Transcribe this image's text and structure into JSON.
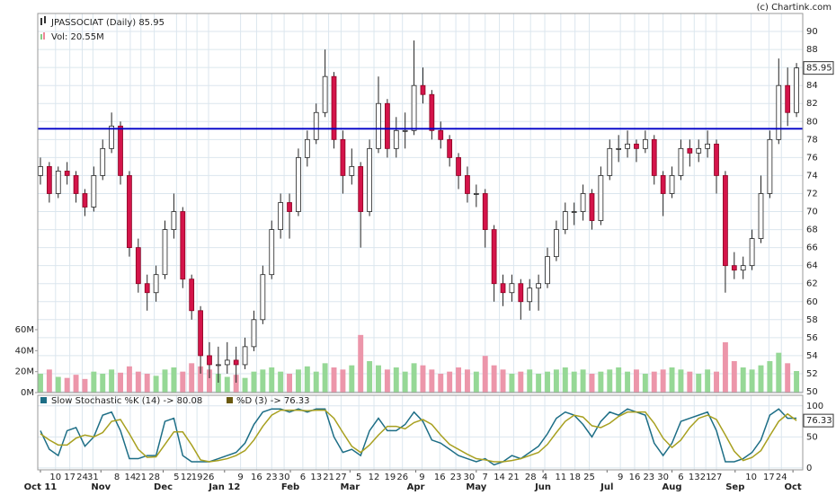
{
  "chart_data": {
    "type": "candlestick",
    "title": "JPASSOCIAT (Daily) 85.95",
    "volume_label": "Vol: 20.55M",
    "credit": "(c) Chartink.com",
    "up_color": "#ffffff",
    "down_color": "#d4144a",
    "vol_up_color": "#96d896",
    "vol_down_color": "#ec96aa",
    "candles": [
      [
        74,
        76,
        73,
        75
      ],
      [
        75,
        75.5,
        71,
        72
      ],
      [
        72,
        75,
        71.5,
        74.5
      ],
      [
        74.5,
        75.5,
        73,
        74
      ],
      [
        74,
        74.5,
        71,
        72
      ],
      [
        72,
        72.5,
        69.5,
        70.5
      ],
      [
        70.5,
        75,
        70,
        74
      ],
      [
        74,
        78,
        73.5,
        77
      ],
      [
        77,
        81,
        76.5,
        79.5
      ],
      [
        79.5,
        80,
        73,
        74
      ],
      [
        74,
        74.5,
        65,
        66
      ],
      [
        66,
        67,
        61,
        62
      ],
      [
        62,
        63,
        59,
        61
      ],
      [
        61,
        64,
        60,
        63
      ],
      [
        63,
        69,
        62.5,
        68
      ],
      [
        68,
        72,
        67,
        70
      ],
      [
        70,
        70.5,
        61.5,
        62.5
      ],
      [
        62.5,
        63,
        58,
        59
      ],
      [
        59,
        59.5,
        52,
        54
      ],
      [
        54,
        55.5,
        51.5,
        53
      ],
      [
        53,
        55,
        51,
        53
      ],
      [
        53,
        55.5,
        52,
        53.5
      ],
      [
        53.5,
        55,
        51,
        53
      ],
      [
        53,
        56,
        52.5,
        55
      ],
      [
        55,
        59,
        54.5,
        58
      ],
      [
        58,
        64,
        57.5,
        63
      ],
      [
        63,
        69,
        62.5,
        68
      ],
      [
        68,
        72,
        67,
        71
      ],
      [
        71,
        72,
        67,
        70
      ],
      [
        70,
        77,
        69.5,
        76
      ],
      [
        76,
        79,
        75,
        78
      ],
      [
        78,
        82,
        77.5,
        81
      ],
      [
        81,
        88,
        80.5,
        85
      ],
      [
        85,
        85.5,
        77,
        78
      ],
      [
        78,
        79,
        72,
        74
      ],
      [
        74,
        77,
        73,
        75
      ],
      [
        75,
        75.5,
        66,
        70
      ],
      [
        70,
        78,
        69.5,
        77
      ],
      [
        77,
        85,
        76.5,
        82
      ],
      [
        82,
        82.5,
        76,
        77
      ],
      [
        77,
        80.5,
        76,
        79
      ],
      [
        79,
        81,
        77,
        79
      ],
      [
        79,
        89,
        78.5,
        84
      ],
      [
        84,
        86,
        82,
        83
      ],
      [
        83,
        83.5,
        78,
        79
      ],
      [
        79,
        80,
        77,
        78
      ],
      [
        78,
        78.5,
        75,
        76
      ],
      [
        76,
        76.5,
        72.5,
        74
      ],
      [
        74,
        75,
        71,
        72
      ],
      [
        72,
        73,
        70.5,
        72
      ],
      [
        72,
        72.5,
        66,
        68
      ],
      [
        68,
        68.5,
        60,
        62
      ],
      [
        62,
        63,
        59.5,
        61
      ],
      [
        61,
        63,
        60,
        62
      ],
      [
        62,
        62.5,
        58,
        60
      ],
      [
        60,
        62.5,
        59,
        61.5
      ],
      [
        61.5,
        63,
        59,
        62
      ],
      [
        62,
        66,
        61.5,
        65
      ],
      [
        65,
        69,
        64.5,
        68
      ],
      [
        68,
        71,
        67.5,
        70
      ],
      [
        70,
        71,
        68.5,
        70
      ],
      [
        70,
        73,
        69,
        72
      ],
      [
        72,
        72.5,
        68,
        69
      ],
      [
        69,
        75,
        68.5,
        74
      ],
      [
        74,
        78,
        73.5,
        77
      ],
      [
        77,
        78.5,
        75.5,
        77
      ],
      [
        77,
        79,
        76,
        77.5
      ],
      [
        77.5,
        78,
        75.5,
        77
      ],
      [
        77,
        79,
        76.5,
        78
      ],
      [
        78,
        78.5,
        73,
        74
      ],
      [
        74,
        74.5,
        69.5,
        72
      ],
      [
        72,
        75,
        71.5,
        74
      ],
      [
        74,
        78,
        73.5,
        77
      ],
      [
        77,
        78,
        75,
        76.5
      ],
      [
        76.5,
        78,
        75.5,
        77
      ],
      [
        77,
        79,
        76,
        77.5
      ],
      [
        77.5,
        78,
        72,
        74
      ],
      [
        74,
        74.5,
        61,
        64
      ],
      [
        64,
        65.5,
        62.5,
        63.5
      ],
      [
        63.5,
        65,
        62.5,
        64
      ],
      [
        64,
        68,
        63.5,
        67
      ],
      [
        67,
        74,
        66.5,
        72
      ],
      [
        72,
        79,
        71.5,
        78
      ],
      [
        78,
        87,
        77.5,
        84
      ],
      [
        84,
        86,
        79.5,
        81
      ],
      [
        81,
        86.5,
        80.5,
        85.95
      ]
    ],
    "volume": [
      18,
      22,
      15,
      14,
      17,
      13,
      20,
      18,
      22,
      19,
      25,
      20,
      18,
      16,
      22,
      24,
      20,
      28,
      25,
      22,
      18,
      15,
      17,
      14,
      20,
      22,
      24,
      20,
      18,
      22,
      25,
      20,
      28,
      24,
      22,
      26,
      55,
      30,
      26,
      22,
      24,
      20,
      28,
      26,
      22,
      18,
      20,
      24,
      22,
      20,
      35,
      26,
      22,
      18,
      20,
      22,
      18,
      20,
      22,
      24,
      20,
      22,
      18,
      20,
      22,
      24,
      20,
      22,
      18,
      20,
      22,
      24,
      22,
      20,
      18,
      22,
      20,
      48,
      30,
      24,
      22,
      26,
      30,
      38,
      28,
      20.55
    ],
    "hline": {
      "value": 79.2,
      "color": "#0000c8"
    },
    "xlim": [
      -0.3,
      85.7
    ],
    "ylim": [
      49.9,
      92
    ],
    "yticks": [
      50,
      52,
      54,
      56,
      58,
      60,
      62,
      64,
      66,
      68,
      70,
      72,
      74,
      76,
      78,
      80,
      82,
      84,
      86,
      88,
      90
    ],
    "vol_ylim": [
      0,
      60
    ],
    "vol_ticks": [
      {
        "value": 0,
        "label": "0M"
      },
      {
        "value": 20,
        "label": "20M"
      },
      {
        "value": 40,
        "label": "40M"
      },
      {
        "value": 60,
        "label": "60M"
      }
    ],
    "xticks": [
      {
        "value": 1.7,
        "label": "10"
      },
      {
        "value": 3.3,
        "label": "17"
      },
      {
        "value": 4.7,
        "label": "24"
      },
      {
        "value": 5.9,
        "label": "31"
      },
      {
        "value": 8.6,
        "label": "8"
      },
      {
        "value": 10.1,
        "label": "14"
      },
      {
        "value": 11.3,
        "label": "21"
      },
      {
        "value": 12.8,
        "label": "28"
      },
      {
        "value": 15.3,
        "label": "5"
      },
      {
        "value": 16.4,
        "label": "12"
      },
      {
        "value": 17.6,
        "label": "19"
      },
      {
        "value": 18.9,
        "label": "26"
      },
      {
        "value": 22.5,
        "label": "9"
      },
      {
        "value": 24.3,
        "label": "16"
      },
      {
        "value": 26.0,
        "label": "23"
      },
      {
        "value": 27.4,
        "label": "30"
      },
      {
        "value": 29.5,
        "label": "6"
      },
      {
        "value": 31.0,
        "label": "13"
      },
      {
        "value": 32.4,
        "label": "21"
      },
      {
        "value": 33.8,
        "label": "27"
      },
      {
        "value": 35.8,
        "label": "5"
      },
      {
        "value": 37.5,
        "label": "12"
      },
      {
        "value": 39.3,
        "label": "19"
      },
      {
        "value": 40.7,
        "label": "26"
      },
      {
        "value": 42.9,
        "label": "9"
      },
      {
        "value": 44.9,
        "label": "16"
      },
      {
        "value": 46.7,
        "label": "23"
      },
      {
        "value": 48.2,
        "label": "30"
      },
      {
        "value": 50.0,
        "label": "7"
      },
      {
        "value": 51.6,
        "label": "14"
      },
      {
        "value": 53.2,
        "label": "21"
      },
      {
        "value": 55.1,
        "label": "28"
      },
      {
        "value": 56.7,
        "label": "4"
      },
      {
        "value": 58.5,
        "label": "11"
      },
      {
        "value": 60.1,
        "label": "18"
      },
      {
        "value": 61.7,
        "label": "25"
      },
      {
        "value": 65.2,
        "label": "9"
      },
      {
        "value": 66.8,
        "label": "16"
      },
      {
        "value": 68.4,
        "label": "23"
      },
      {
        "value": 70.0,
        "label": "30"
      },
      {
        "value": 72.0,
        "label": "6"
      },
      {
        "value": 73.5,
        "label": "13"
      },
      {
        "value": 74.8,
        "label": "21"
      },
      {
        "value": 76.0,
        "label": "27"
      },
      {
        "value": 79.9,
        "label": "10"
      },
      {
        "value": 81.9,
        "label": "17"
      },
      {
        "value": 83.3,
        "label": "24"
      }
    ],
    "months": [
      {
        "value": 0,
        "label": "Oct 11"
      },
      {
        "value": 6.8,
        "label": "Nov"
      },
      {
        "value": 13.8,
        "label": "Dec"
      },
      {
        "value": 20.7,
        "label": "Jan 12"
      },
      {
        "value": 28.1,
        "label": "Feb"
      },
      {
        "value": 34.8,
        "label": "Mar"
      },
      {
        "value": 42.2,
        "label": "Apr"
      },
      {
        "value": 49.0,
        "label": "May"
      },
      {
        "value": 56.5,
        "label": "Jun"
      },
      {
        "value": 63.7,
        "label": "Jul"
      },
      {
        "value": 71.0,
        "label": "Aug"
      },
      {
        "value": 78.1,
        "label": "Sep"
      },
      {
        "value": 84.6,
        "label": "Oct"
      }
    ],
    "stochastic": {
      "ylim": [
        -3,
        117
      ],
      "yticks": [
        0,
        50,
        100
      ],
      "series": [
        {
          "name": "Slow Stochastic %K (14) -> 80.08",
          "color": "#1d6e86",
          "values": [
            60,
            30,
            20,
            60,
            65,
            35,
            50,
            85,
            90,
            60,
            15,
            15,
            20,
            20,
            75,
            80,
            20,
            10,
            10,
            10,
            15,
            20,
            25,
            40,
            70,
            90,
            95,
            95,
            90,
            95,
            90,
            95,
            95,
            50,
            25,
            30,
            20,
            60,
            80,
            60,
            60,
            70,
            90,
            75,
            45,
            40,
            30,
            20,
            15,
            10,
            15,
            5,
            10,
            20,
            15,
            25,
            35,
            55,
            80,
            90,
            85,
            70,
            50,
            75,
            90,
            85,
            95,
            90,
            85,
            40,
            20,
            40,
            75,
            80,
            85,
            90,
            60,
            10,
            10,
            15,
            25,
            45,
            85,
            95,
            80,
            80.08
          ]
        },
        {
          "name": "%D (3) -> 76.33",
          "color": "#a8a020",
          "values": [
            55,
            45,
            37,
            37,
            48,
            53,
            50,
            57,
            75,
            78,
            55,
            30,
            17,
            18,
            38,
            58,
            58,
            37,
            13,
            10,
            12,
            15,
            20,
            28,
            45,
            67,
            85,
            93,
            93,
            93,
            92,
            93,
            93,
            80,
            57,
            35,
            25,
            37,
            53,
            67,
            67,
            63,
            73,
            78,
            70,
            53,
            38,
            30,
            22,
            15,
            13,
            10,
            10,
            12,
            15,
            20,
            25,
            38,
            57,
            75,
            85,
            82,
            68,
            65,
            72,
            83,
            90,
            90,
            90,
            72,
            48,
            33,
            45,
            65,
            80,
            85,
            78,
            53,
            27,
            12,
            17,
            28,
            52,
            75,
            87,
            76.33
          ]
        }
      ]
    }
  }
}
